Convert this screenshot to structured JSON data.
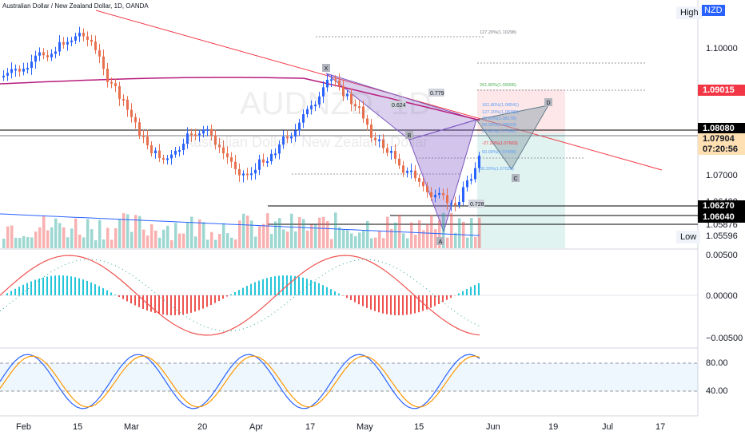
{
  "symbol": "Australian Dollar / New Zealand Dollar, 1D, OANDA",
  "watermark": {
    "ticker": "AUDNZD, 1D",
    "name": "Australian Dollar / New Zealand Dollar"
  },
  "currency": "NZD",
  "high_label": "High",
  "low_label": "Low",
  "low_value": "1.05596",
  "price_axis": [
    "1.10000",
    "1.07000",
    "1.06400",
    "1.05876",
    "0.00500",
    "0.00000",
    "−0.00500",
    "80.00",
    "40.00"
  ],
  "price_tags": [
    {
      "value": "1.09015",
      "bg": "#f23645",
      "color": "#ffffff"
    },
    {
      "value": "1.08080",
      "bg": "#000000",
      "color": "#ffffff"
    },
    {
      "value": "1.07904",
      "bg": "#ffe0b2",
      "color": "#131722"
    },
    {
      "value": "07:20:56",
      "bg": "#ffe0b2",
      "color": "#131722"
    },
    {
      "value": "1.06270",
      "bg": "#000000",
      "color": "#ffffff"
    },
    {
      "value": "1.06040",
      "bg": "#000000",
      "color": "#ffffff"
    }
  ],
  "time_axis": [
    "Feb",
    "15",
    "Mar",
    "20",
    "Apr",
    "17",
    "May",
    "15",
    "Jun",
    "19",
    "Jul",
    "17"
  ],
  "pattern_points": [
    "X",
    "A",
    "B",
    "C",
    "D"
  ],
  "pattern_ratios": [
    "0.624",
    "0.779",
    "0.728"
  ],
  "fib_levels": [
    "127.20%(1.10298)",
    "261.80%(1.09006)",
    "161.80%(1.08541)",
    "127.20%(1.08380)",
    "78.60%(1.08178)",
    "50.00%(1.08033)",
    "23.60%(1.07962)",
    "-27.20%(1.07663)",
    "38.20%(1.07026)",
    "50.00%(1.07499)"
  ],
  "colors": {
    "bull": "#26a69a",
    "bear": "#ef5350",
    "bull_bright": "#2962ff",
    "bear_dark": "#e8704f",
    "trendline": "#f23645",
    "ma": "#b71c7c",
    "pattern_fill": "#7e57c2",
    "macd": "#ef5350",
    "signal": "#26a69a",
    "stoch_k": "#2962ff",
    "stoch_d": "#ff9800"
  }
}
